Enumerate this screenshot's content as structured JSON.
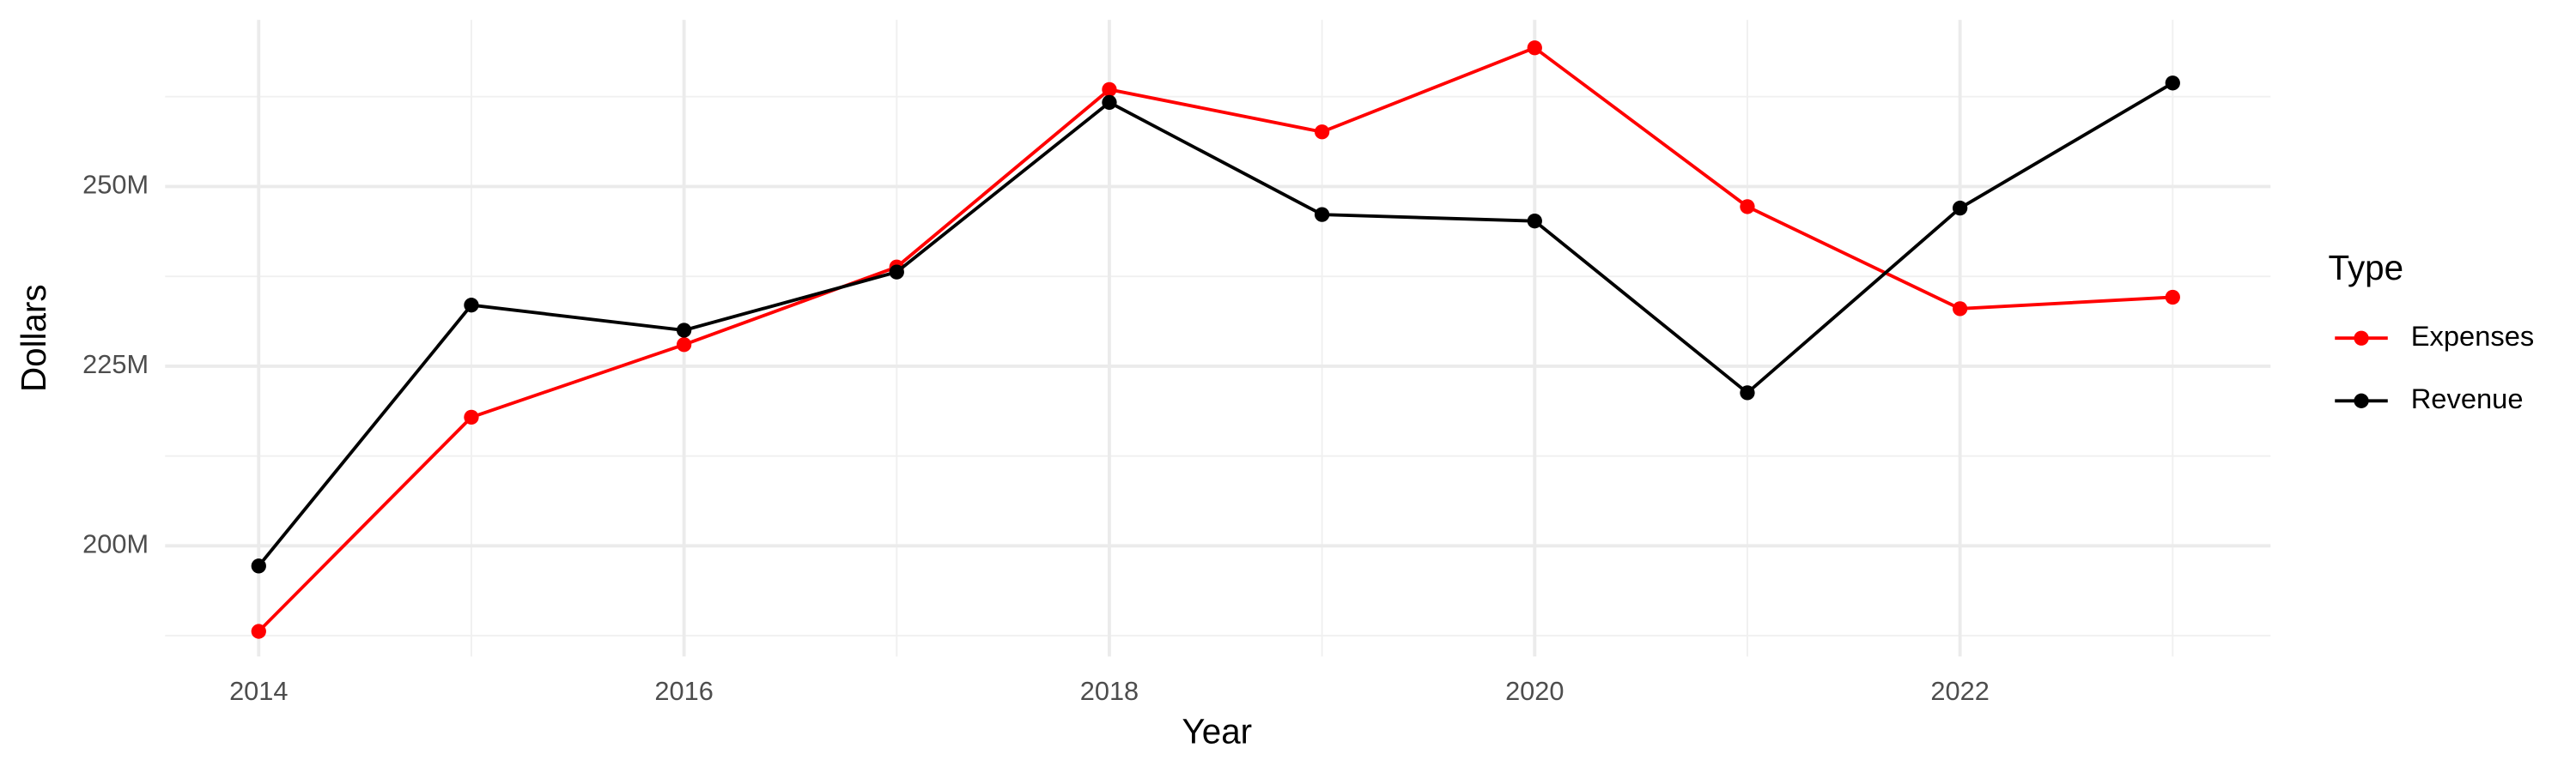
{
  "chart_data": {
    "type": "line",
    "x_label": "Year",
    "y_label": "Dollars",
    "legend_title": "Type",
    "x": [
      2014,
      2015,
      2016,
      2017,
      2018,
      2019,
      2020,
      2021,
      2022,
      2023
    ],
    "series": [
      {
        "name": "Expenses",
        "color": "#ff0000",
        "values": [
          188100000,
          217900000,
          228000000,
          238800000,
          263500000,
          257600000,
          269300000,
          247200000,
          233000000,
          234600000
        ]
      },
      {
        "name": "Revenue",
        "color": "#000000",
        "values": [
          197200000,
          233500000,
          230000000,
          238100000,
          261700000,
          246100000,
          245200000,
          221300000,
          247000000,
          264400000
        ]
      }
    ],
    "xlim": [
      2013.56,
      2023.46
    ],
    "xticks": [
      2014,
      2016,
      2018,
      2020,
      2022
    ],
    "x_minor_ticks": [
      2015,
      2017,
      2019,
      2021,
      2023
    ],
    "ylim": [
      184600000,
      273200000
    ],
    "yticks": [
      {
        "value": 200000000,
        "label": "200M"
      },
      {
        "value": 225000000,
        "label": "225M"
      },
      {
        "value": 250000000,
        "label": "250M"
      }
    ],
    "y_minor_ticks": [
      187500000,
      212500000,
      237500000,
      262500000
    ],
    "grid": true,
    "legend_position": "right"
  }
}
